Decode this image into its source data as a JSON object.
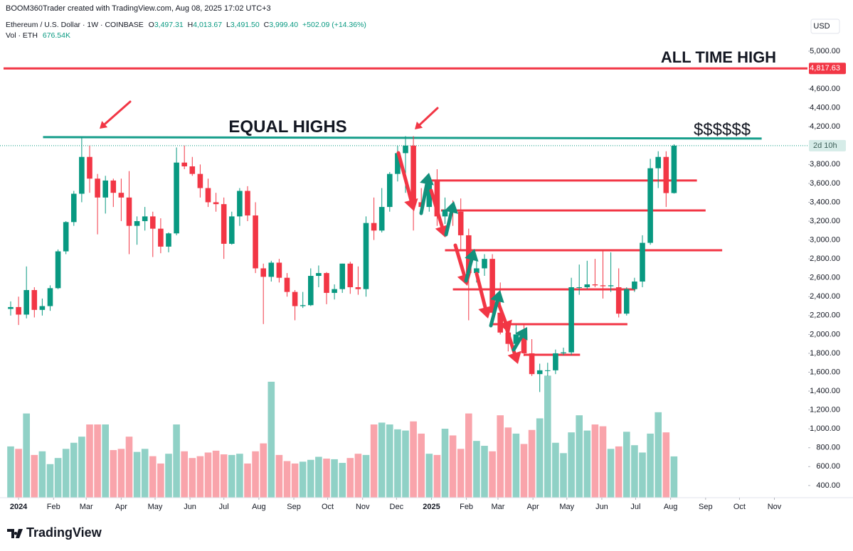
{
  "header": {
    "credit": "BOOM360Trader created with TradingView.com, Aug 08, 2025 17:02 UTC+3",
    "currency": "USD",
    "brand": "TradingView"
  },
  "legend": {
    "symbol": "Ethereum / U.S. Dollar · 1W · COINBASE",
    "ohlc": [
      {
        "label": "O",
        "value": "3,497.31"
      },
      {
        "label": "H",
        "value": "4,013.67"
      },
      {
        "label": "L",
        "value": "3,491.50"
      },
      {
        "label": "C",
        "value": "3,999.40"
      }
    ],
    "change": "+502.09 (+14.36%)",
    "volume_label": "Vol · ETH",
    "volume_value": "676.54K"
  },
  "chart_data": {
    "type": "candlestick",
    "up_color": "#089981",
    "down_color": "#f23645",
    "open": [
      2270,
      2290,
      2210,
      2470,
      2260,
      2300,
      2490,
      2880,
      3190,
      3490,
      3880,
      3650,
      3450,
      3630,
      3500,
      3450,
      3150,
      3200,
      3250,
      3120,
      2930,
      3070,
      3820,
      3780,
      3700,
      3550,
      3400,
      3380,
      2960,
      3250,
      3520,
      3260,
      2700,
      2610,
      2760,
      2600,
      2450,
      2300,
      2310,
      2620,
      2650,
      2440,
      2480,
      2750,
      2500,
      2480,
      3180,
      3100,
      3350,
      3700,
      3920,
      4000,
      3400,
      3350,
      3630,
      3250,
      3320,
      3300,
      3050,
      2650,
      2700,
      2800,
      2230,
      2020,
      1900,
      2000,
      1800,
      1580,
      1620,
      1620,
      1800,
      1810,
      2500,
      2500,
      2530,
      2520,
      2510,
      2500,
      2220,
      2480,
      2560,
      2970,
      3760,
      3880,
      3497.31
    ],
    "high": [
      2350,
      2400,
      2720,
      2500,
      2380,
      2520,
      2900,
      3200,
      3520,
      4090,
      4000,
      3700,
      3680,
      3650,
      3650,
      3730,
      3250,
      3350,
      3300,
      3230,
      3080,
      3980,
      4000,
      3880,
      3800,
      3650,
      3500,
      3450,
      3300,
      3550,
      3570,
      3400,
      2750,
      2780,
      2800,
      2650,
      2470,
      2450,
      2700,
      2730,
      2660,
      2530,
      2750,
      2770,
      2720,
      3250,
      3450,
      3550,
      3720,
      4000,
      4100,
      4100,
      3550,
      3650,
      3750,
      3450,
      3420,
      3440,
      3120,
      2800,
      2850,
      2850,
      2550,
      2100,
      2100,
      2100,
      1950,
      1690,
      1700,
      1840,
      1860,
      2600,
      2740,
      2780,
      2800,
      2880,
      2870,
      2700,
      2500,
      2600,
      3050,
      3860,
      3940,
      3940,
      4013.67
    ],
    "low": [
      2200,
      2100,
      2170,
      2180,
      2200,
      2250,
      2480,
      2850,
      3150,
      3400,
      3500,
      3060,
      3280,
      3350,
      3200,
      2850,
      2950,
      3100,
      2820,
      2860,
      2870,
      3050,
      3750,
      3680,
      3450,
      3350,
      3300,
      2800,
      2950,
      3150,
      3200,
      2650,
      2110,
      2560,
      2550,
      2400,
      2150,
      2280,
      2300,
      2500,
      2320,
      2370,
      2440,
      2430,
      2420,
      2400,
      3000,
      3080,
      3300,
      3620,
      3500,
      3100,
      3300,
      3300,
      3150,
      3170,
      3150,
      2880,
      2150,
      2550,
      2620,
      2150,
      2000,
      1820,
      1850,
      1770,
      1560,
      1390,
      1560,
      1580,
      1780,
      1780,
      2420,
      2480,
      2500,
      2380,
      2450,
      2180,
      2200,
      2450,
      2500,
      2950,
      3550,
      3350,
      3491.5
    ],
    "close": [
      2290,
      2210,
      2470,
      2260,
      2300,
      2490,
      2880,
      3190,
      3490,
      3880,
      3650,
      3450,
      3630,
      3500,
      3450,
      3150,
      3200,
      3250,
      3120,
      2930,
      3070,
      3820,
      3780,
      3700,
      3550,
      3400,
      3380,
      2960,
      3250,
      3520,
      3260,
      2700,
      2610,
      2760,
      2600,
      2450,
      2300,
      2310,
      2620,
      2650,
      2440,
      2480,
      2750,
      2500,
      2480,
      3180,
      3100,
      3350,
      3700,
      3920,
      4000,
      3400,
      3350,
      3630,
      3250,
      3320,
      3300,
      3050,
      2650,
      2700,
      2800,
      2230,
      2020,
      1900,
      2000,
      1800,
      1580,
      1620,
      1620,
      1800,
      1810,
      2500,
      2500,
      2530,
      2520,
      2510,
      2520,
      2220,
      2480,
      2560,
      2970,
      3760,
      3880,
      3497,
      3999.4
    ],
    "volume": [
      840,
      800,
      1380,
      700,
      760,
      550,
      650,
      800,
      900,
      1000,
      1200,
      1200,
      1200,
      780,
      800,
      1000,
      750,
      800,
      680,
      560,
      720,
      1200,
      760,
      650,
      680,
      740,
      770,
      710,
      700,
      720,
      560,
      760,
      890,
      1900,
      700,
      600,
      560,
      590,
      620,
      670,
      640,
      630,
      570,
      650,
      720,
      700,
      1200,
      1230,
      1200,
      1120,
      1100,
      1250,
      1050,
      720,
      700,
      1130,
      1020,
      800,
      1380,
      930,
      850,
      760,
      1350,
      1150,
      1050,
      880,
      1110,
      1300,
      2000,
      900,
      730,
      1070,
      1350,
      1100,
      1200,
      1170,
      800,
      840,
      1080,
      860,
      740,
      1050,
      1400,
      1070,
      676.54
    ],
    "volume_lim": [
      0,
      2400
    ],
    "xlim": [
      -1.35,
      100.9
    ],
    "xticks": [
      {
        "value": 1.0,
        "label": "2024"
      },
      {
        "value": 5.43,
        "label": "Feb"
      },
      {
        "value": 9.57,
        "label": "Mar"
      },
      {
        "value": 14.0,
        "label": "Apr"
      },
      {
        "value": 18.29,
        "label": "May"
      },
      {
        "value": 22.71,
        "label": "Jun"
      },
      {
        "value": 27.0,
        "label": "Jul"
      },
      {
        "value": 31.43,
        "label": "Aug"
      },
      {
        "value": 35.86,
        "label": "Sep"
      },
      {
        "value": 40.14,
        "label": "Oct"
      },
      {
        "value": 44.57,
        "label": "Nov"
      },
      {
        "value": 48.86,
        "label": "Dec"
      },
      {
        "value": 53.29,
        "label": "2025"
      },
      {
        "value": 57.71,
        "label": "Feb"
      },
      {
        "value": 61.71,
        "label": "Mar"
      },
      {
        "value": 66.14,
        "label": "Apr"
      },
      {
        "value": 70.43,
        "label": "May"
      },
      {
        "value": 74.86,
        "label": "Jun"
      },
      {
        "value": 79.14,
        "label": "Jul"
      },
      {
        "value": 83.57,
        "label": "Aug"
      },
      {
        "value": 88.0,
        "label": "Sep"
      },
      {
        "value": 92.29,
        "label": "Oct"
      },
      {
        "value": 96.71,
        "label": "Nov"
      }
    ],
    "ylim": [
      271,
      5542
    ],
    "yticks": [
      {
        "value": 5000,
        "label": "5,000.00"
      },
      {
        "value": 4600,
        "label": "4,600.00"
      },
      {
        "value": 4400,
        "label": "4,400.00"
      },
      {
        "value": 4200,
        "label": "4,200.00"
      },
      {
        "value": 3800,
        "label": "3,800.00"
      },
      {
        "value": 3600,
        "label": "3,600.00"
      },
      {
        "value": 3400,
        "label": "3,400.00"
      },
      {
        "value": 3200,
        "label": "3,200.00"
      },
      {
        "value": 3000,
        "label": "3,000.00"
      },
      {
        "value": 2800,
        "label": "2,800.00"
      },
      {
        "value": 2600,
        "label": "2,600.00"
      },
      {
        "value": 2400,
        "label": "2,400.00"
      },
      {
        "value": 2200,
        "label": "2,200.00"
      },
      {
        "value": 2000,
        "label": "2,000.00"
      },
      {
        "value": 1800,
        "label": "1,800.00"
      },
      {
        "value": 1600,
        "label": "1,600.00"
      },
      {
        "value": 1400,
        "label": "1,400.00"
      },
      {
        "value": 1200,
        "label": "1,200.00"
      },
      {
        "value": 1000,
        "label": "1,000.00"
      },
      {
        "value": 800,
        "label": "800.00"
      },
      {
        "value": 600,
        "label": "600.00"
      },
      {
        "value": 400,
        "label": "400.00"
      }
    ],
    "countdown": "2d 10h",
    "ath": {
      "price": 4817.63,
      "label": "4,817.63",
      "text": "ALL TIME HIGH",
      "color": "#f23645"
    },
    "equal_highs": {
      "text": "EQUAL HIGHS",
      "x": [
        4.1,
        95.1
      ],
      "y": [
        4090,
        4075
      ],
      "color": "#169e8b"
    },
    "target_text": "$$$$$$",
    "levels": {
      "color": "#f23645",
      "lines": [
        {
          "y": 3630,
          "x": [
            53.3,
            86.9
          ]
        },
        {
          "y": 3313,
          "x": [
            54.5,
            88.0
          ]
        },
        {
          "y": 2891,
          "x": [
            55.0,
            90.1
          ]
        },
        {
          "y": 2477,
          "x": [
            56.0,
            79.1
          ]
        },
        {
          "y": 2108,
          "x": [
            60.8,
            78.1
          ]
        },
        {
          "y": 1785,
          "x": [
            65.0,
            72.1
          ]
        }
      ]
    }
  }
}
